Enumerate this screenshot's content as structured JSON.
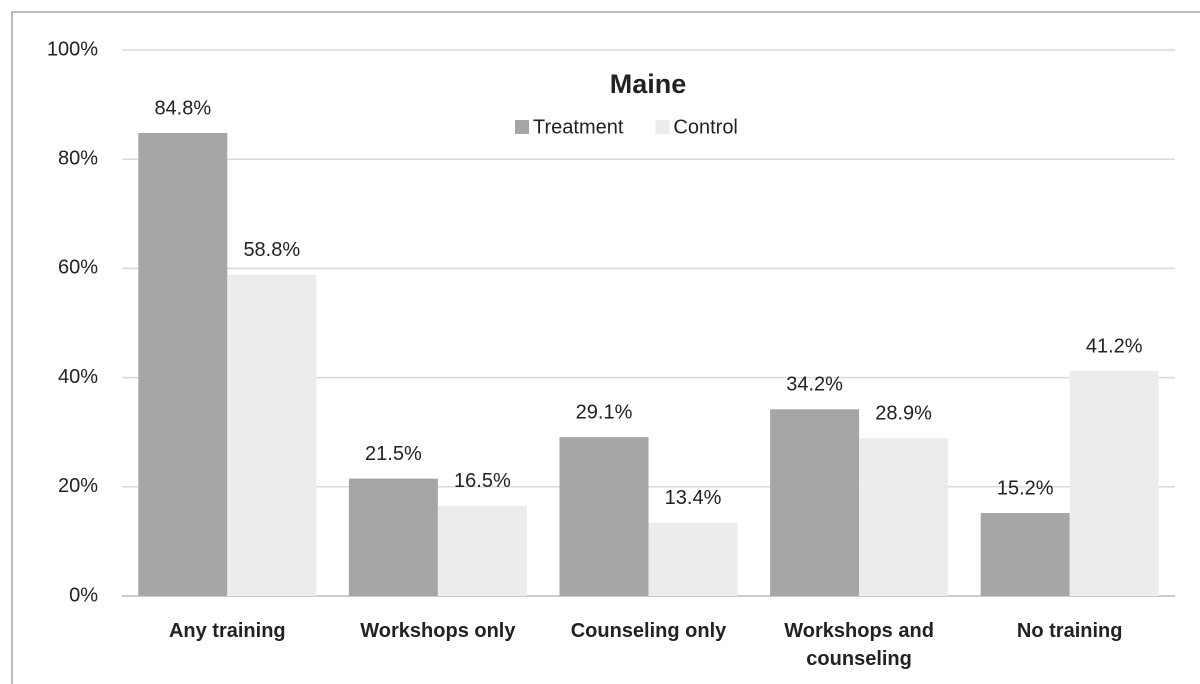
{
  "chart_data": {
    "type": "bar",
    "title": "Maine",
    "categories": [
      "Any training",
      "Workshops only",
      "Counseling only",
      "Workshops and counseling",
      "No training"
    ],
    "series": [
      {
        "name": "Treatment",
        "color": "#a6a6a6",
        "values": [
          84.8,
          21.5,
          29.1,
          34.2,
          15.2
        ],
        "value_labels": [
          "84.8%",
          "21.5%",
          "29.1%",
          "34.2%",
          "15.2%"
        ]
      },
      {
        "name": "Control",
        "color": "#ececec",
        "values": [
          58.8,
          16.5,
          13.4,
          28.9,
          41.2
        ],
        "value_labels": [
          "58.8%",
          "16.5%",
          "13.4%",
          "28.9%",
          "41.2%"
        ]
      }
    ],
    "ylim": [
      0,
      100
    ],
    "yticks": [
      {
        "value": 0,
        "label": "0%"
      },
      {
        "value": 20,
        "label": "20%"
      },
      {
        "value": 40,
        "label": "40%"
      },
      {
        "value": 60,
        "label": "60%"
      },
      {
        "value": 80,
        "label": "80%"
      },
      {
        "value": 100,
        "label": "100%"
      }
    ],
    "grid": true,
    "legend": "top"
  }
}
